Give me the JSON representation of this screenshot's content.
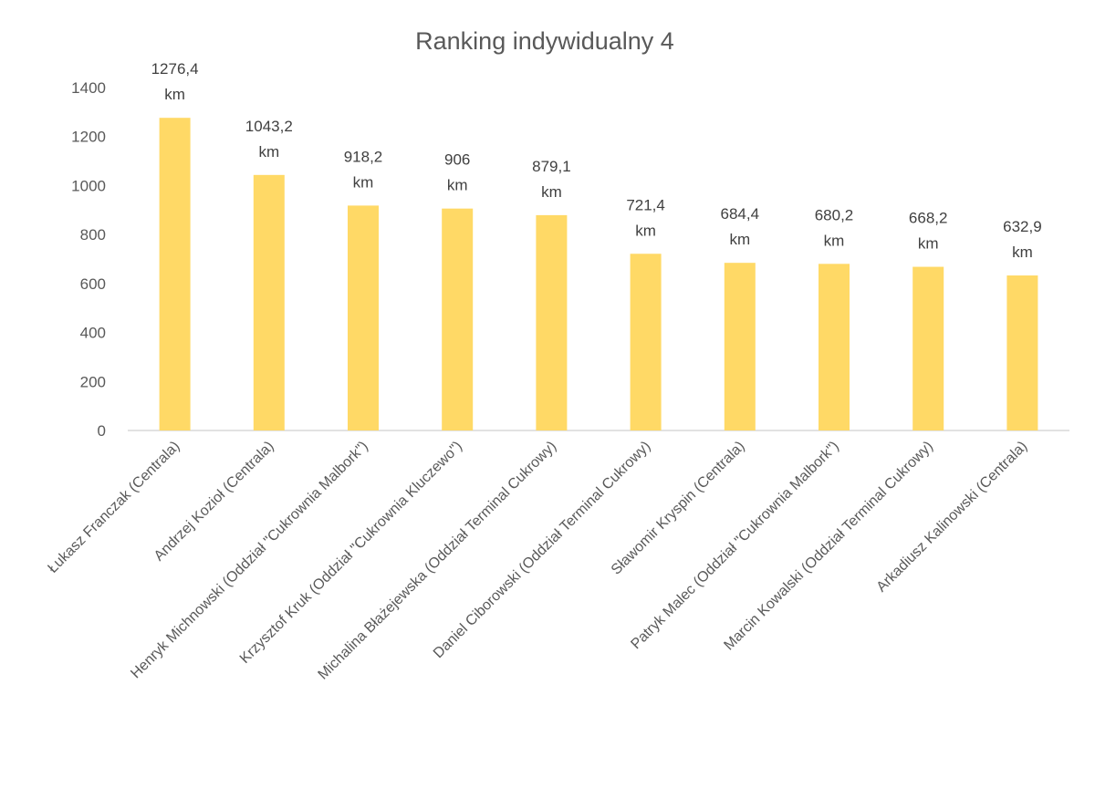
{
  "chart_data": {
    "type": "bar",
    "title": "Ranking indywidualny 4",
    "xlabel": "",
    "ylabel": "",
    "ylim": [
      0,
      1400
    ],
    "yticks": [
      0,
      200,
      400,
      600,
      800,
      1000,
      1200,
      1400
    ],
    "grid": false,
    "legend": "none",
    "bar_color": "#FFD966",
    "unit": "km",
    "categories": [
      "Łukasz Franczak (Centrala)",
      "Andrzej Kozioł (Centrala)",
      "Henryk Michnowski (Oddział \"Cukrownia Malbork\")",
      "Krzysztof Kruk (Oddział \"Cukrownia Kluczewo\")",
      "Michalina Błażejewska (Oddział Terminal Cukrowy)",
      "Daniel Ciborowski (Oddział Terminal Cukrowy)",
      "Sławomir Kryspin (Centrala)",
      "Patryk Malec (Oddział \"Cukrownia Malbork\")",
      "Marcin Kowalski (Oddział Terminal Cukrowy)",
      "Arkadiusz Kalinowski (Centrala)"
    ],
    "values": [
      1276.4,
      1043.2,
      918.2,
      906,
      879.1,
      721.4,
      684.4,
      680.2,
      668.2,
      632.9
    ],
    "data_labels": [
      "1276,4",
      "1043,2",
      "918,2",
      "906",
      "879,1",
      "721,4",
      "684,4",
      "680,2",
      "668,2",
      "632,9"
    ]
  }
}
